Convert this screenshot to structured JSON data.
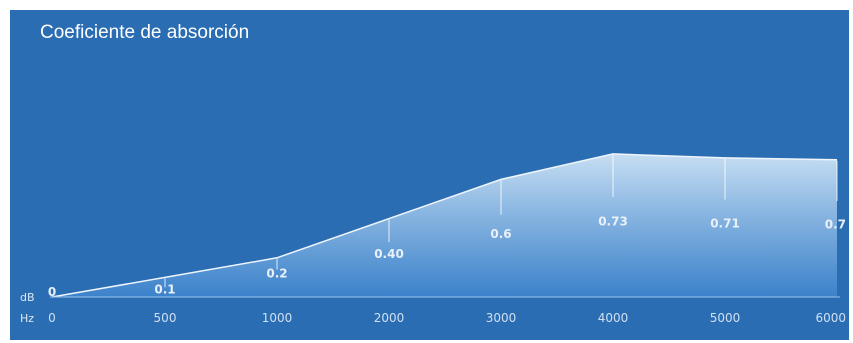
{
  "chart_data": {
    "type": "area",
    "title": "Coeficiente de absorción",
    "x": [
      0,
      500,
      1000,
      2000,
      3000,
      4000,
      5000,
      6000
    ],
    "values": [
      0,
      0.1,
      0.2,
      0.4,
      0.6,
      0.73,
      0.71,
      0.7
    ],
    "value_labels": [
      "0",
      "0.1",
      "0.2",
      "0.40",
      "0.6",
      "0.73",
      "0.71",
      "0.7"
    ],
    "x_tick_labels": [
      "0",
      "500",
      "1000",
      "2000",
      "3000",
      "4000",
      "5000",
      "6000"
    ],
    "y_unit": "dB",
    "x_unit": "Hz",
    "grid": false,
    "legend": "none"
  },
  "colors": {
    "background": "#2a6db3",
    "area_top": "#cfe4f6",
    "area_bottom": "#3f86cf",
    "label": "#e8f0f9"
  }
}
